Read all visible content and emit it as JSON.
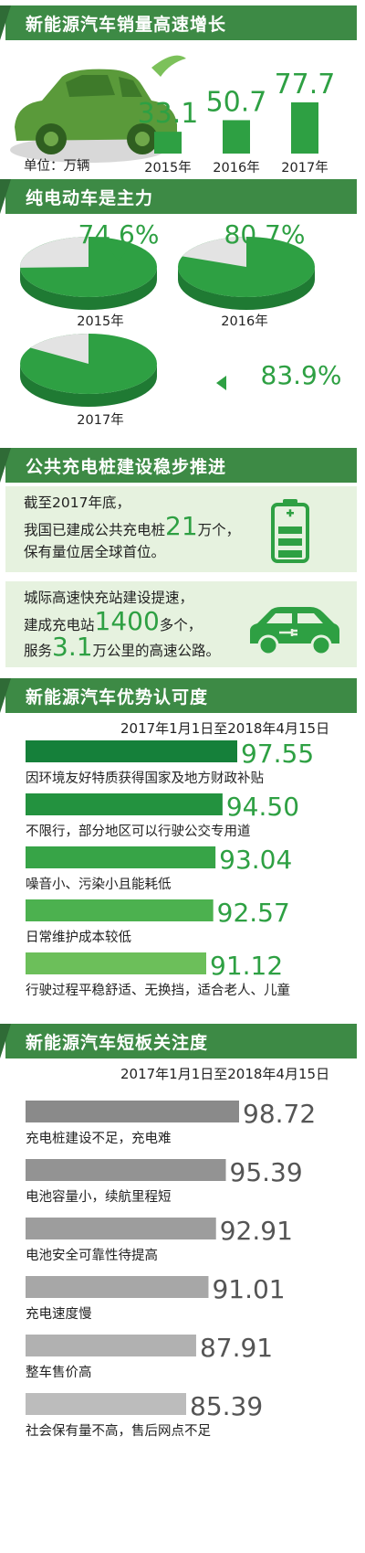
{
  "section1": {
    "title": "新能源汽车销量高速增长",
    "unit": "单位：万辆",
    "chart_data": {
      "type": "bar",
      "categories": [
        "2015年",
        "2016年",
        "2017年"
      ],
      "values": [
        33.1,
        50.7,
        77.7
      ],
      "value_labels": [
        "33.1",
        "50.7",
        "77.7"
      ],
      "color": "#2ea043"
    }
  },
  "section2": {
    "title": "纯电动车是主力",
    "chart_data": {
      "type": "pie",
      "categories": [
        "2015年",
        "2016年",
        "2017年"
      ],
      "values": [
        74.6,
        80.7,
        83.9
      ],
      "value_labels": [
        "74.6%",
        "80.7%",
        "83.9%"
      ],
      "colors": {
        "share": "#2ea043",
        "rest": "#e3e3e3"
      }
    }
  },
  "section3": {
    "title": "公共充电桩建设稳步推进",
    "card1": {
      "line1": "截至2017年底，",
      "line2_pre": "我国已建成公共充电桩",
      "line2_num": "21",
      "line2_post": "万个，",
      "line3": "保有量位居全球首位。",
      "icon": "battery-icon"
    },
    "card2": {
      "line1": "城际高速快充站建设提速，",
      "line2_pre": "建成充电站",
      "line2_num": "1400",
      "line2_post": "多个，",
      "line3_pre": "服务",
      "line3_num": "3.1",
      "line3_post": "万公里的高速公路。",
      "icon": "electric-car-icon"
    }
  },
  "section4": {
    "title": "新能源汽车优势认可度",
    "date_range": "2017年1月1日至2018年4月15日",
    "chart_data": {
      "type": "bar",
      "orientation": "horizontal",
      "categories": [
        "因环境友好特质获得国家及地方财政补贴",
        "不限行，部分地区可以行驶公交专用道",
        "噪音小、污染小且能耗低",
        "日常维护成本较低",
        "行驶过程平稳舒适、无换挡，适合老人、儿童"
      ],
      "values": [
        97.55,
        94.5,
        93.04,
        92.57,
        91.12
      ],
      "value_labels": [
        "97.55",
        "94.50",
        "93.04",
        "92.57",
        "91.12"
      ],
      "colors": [
        "#15803a",
        "#23923f",
        "#37a447",
        "#4cb14f",
        "#6cbf5a"
      ]
    }
  },
  "section5": {
    "title": "新能源汽车短板关注度",
    "date_range": "2017年1月1日至2018年4月15日",
    "chart_data": {
      "type": "bar",
      "orientation": "horizontal",
      "categories": [
        "充电桩建设不足，充电难",
        "电池容量小，续航里程短",
        "电池安全可靠性待提高",
        "充电速度慢",
        "整车售价高",
        "社会保有量不高，售后网点不足"
      ],
      "values": [
        98.72,
        95.39,
        92.91,
        91.01,
        87.91,
        85.39
      ],
      "value_labels": [
        "98.72",
        "95.39",
        "92.91",
        "91.01",
        "87.91",
        "85.39"
      ],
      "colors": [
        "#8a8a8a",
        "#939393",
        "#9d9d9d",
        "#a7a7a7",
        "#b1b1b1",
        "#bcbcbc"
      ]
    }
  }
}
